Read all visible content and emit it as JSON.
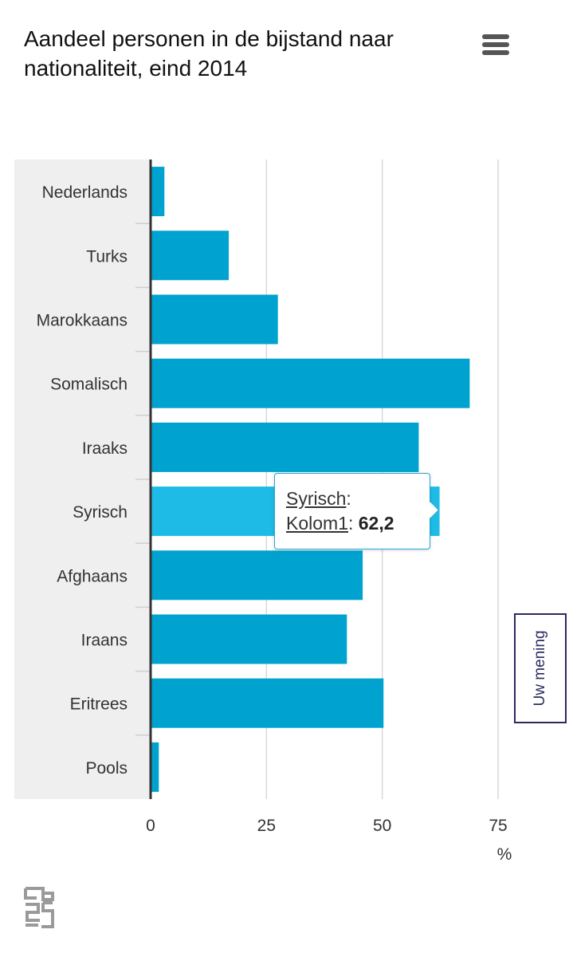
{
  "header": {
    "menu_icon": "hamburger-menu-icon"
  },
  "tooltip": {
    "category": "Syrisch",
    "series": "Kolom1",
    "value": "62,2"
  },
  "feedback": {
    "label": "Uw mening"
  },
  "logo": {
    "icon": "cbs-logo-icon"
  },
  "colors": {
    "bar": "#00a2cf",
    "bar_highlight": "#1dbbe6",
    "label_band": "#efefef",
    "grid": "#d9d9d9"
  },
  "chart_data": {
    "type": "bar",
    "orientation": "horizontal",
    "title": "Aandeel personen in de bijstand naar nationaliteit, eind 2014",
    "unit": "%",
    "categories": [
      "Nederlands",
      "Turks",
      "Marokkaans",
      "Somalisch",
      "Iraaks",
      "Syrisch",
      "Afghaans",
      "Iraans",
      "Eritrees",
      "Pools"
    ],
    "series": [
      {
        "name": "Kolom1",
        "values": [
          2.8,
          16.7,
          27.3,
          68.7,
          57.7,
          62.2,
          45.6,
          42.2,
          50.1,
          1.6
        ]
      }
    ],
    "xlim": [
      0,
      75
    ],
    "xticks": [
      0,
      25,
      50,
      75
    ],
    "xtick_labels": [
      "0",
      "25",
      "50",
      "75"
    ],
    "highlighted_category": "Syrisch",
    "grid": true
  }
}
